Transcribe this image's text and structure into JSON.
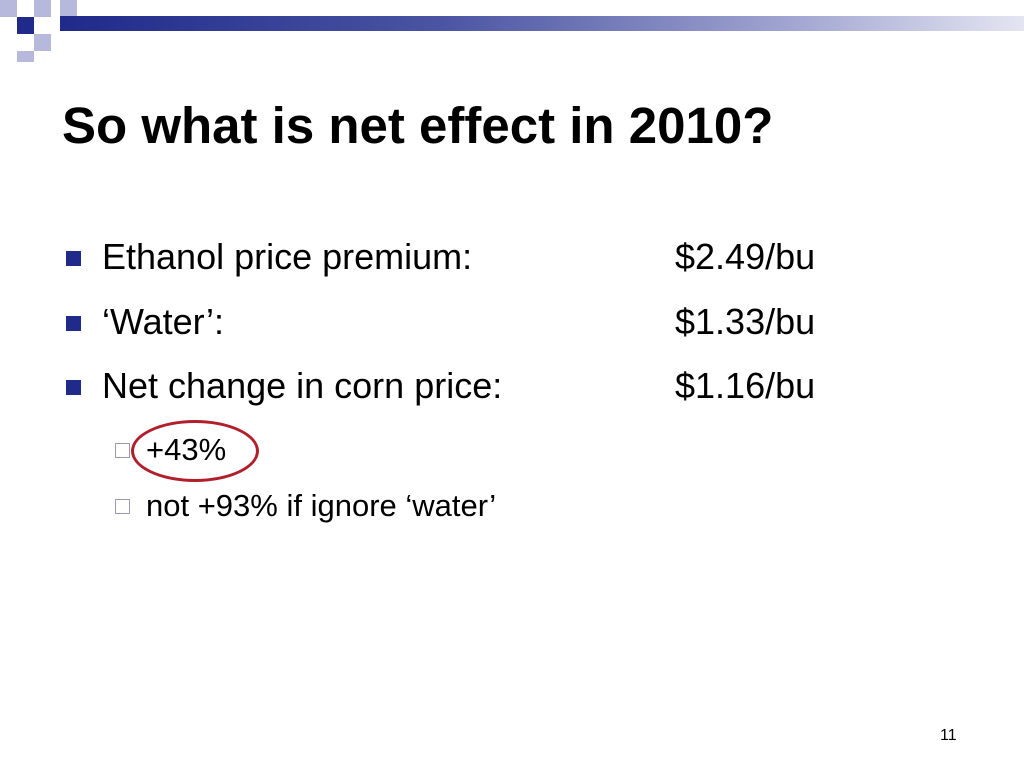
{
  "colors": {
    "accent_dark": "#1f2a8a",
    "accent_light": "#b7b9dc",
    "bullet": "#1f2a8a",
    "highlight_circle": "#b01f2a",
    "text": "#000000"
  },
  "slide": {
    "title": "So what is net effect in 2010?",
    "bullets": [
      {
        "label": "Ethanol price premium:",
        "value": "$2.49/bu"
      },
      {
        "label": "‘Water’:",
        "value": "$1.33/bu"
      },
      {
        "label": "Net change in corn price:",
        "value": "$1.16/bu"
      }
    ],
    "sub_bullets": [
      {
        "label": "+43%"
      },
      {
        "label": "not +93% if ignore ‘water’"
      }
    ],
    "highlighted_item": "+43%",
    "page_number": "11"
  },
  "icons": {
    "bullet_marker": "filled-square-icon",
    "sub_bullet_marker": "hollow-square-icon"
  }
}
